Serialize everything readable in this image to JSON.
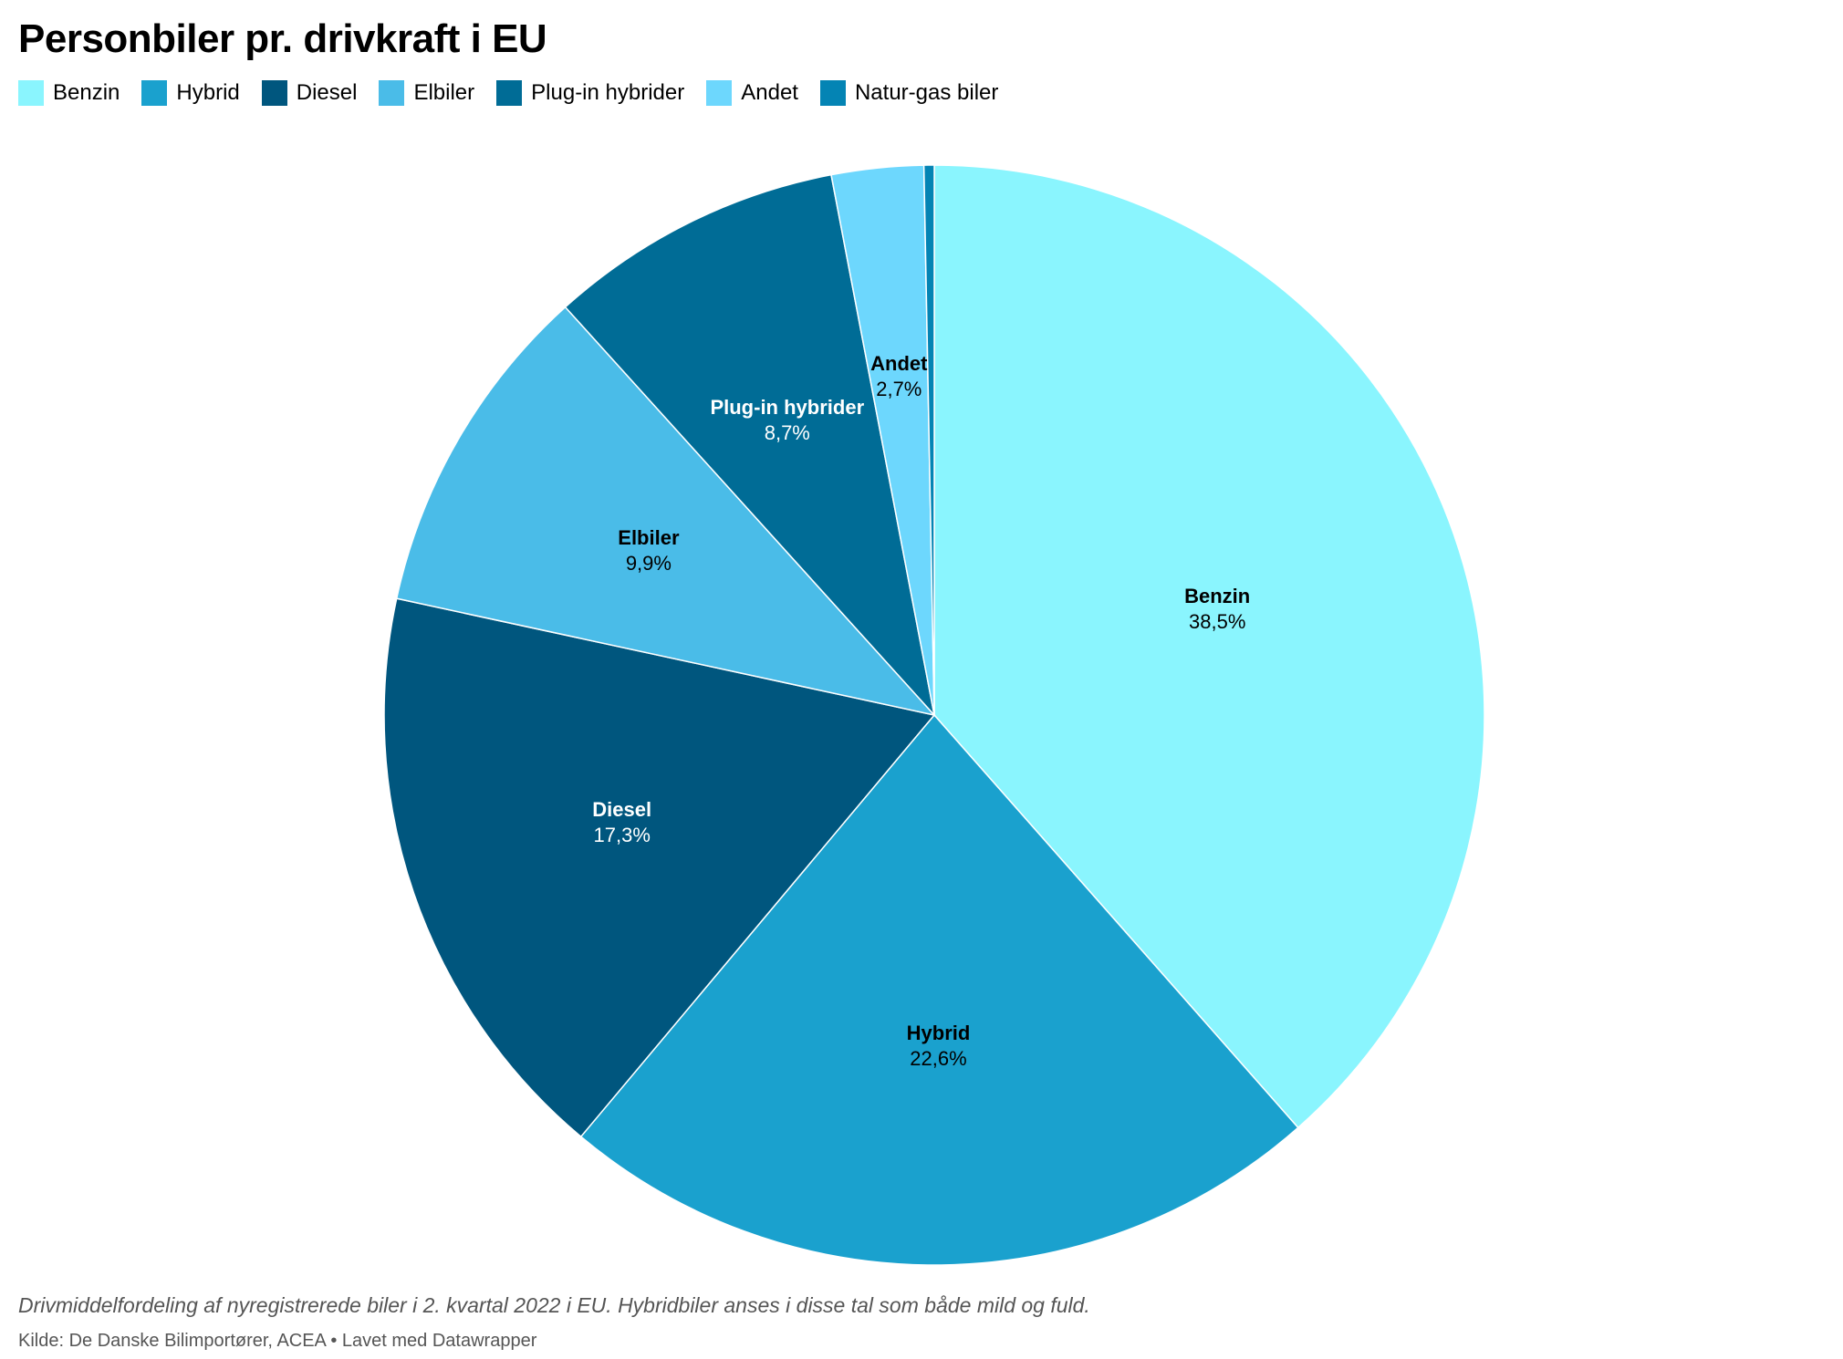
{
  "chart_data": {
    "type": "pie",
    "title": "Personbiler pr. drivkraft i EU",
    "slices": [
      {
        "name": "Benzin",
        "value": 38.5,
        "label": "38,5%",
        "color": "#8af5fe",
        "label_color": "#000000"
      },
      {
        "name": "Hybrid",
        "value": 22.6,
        "label": "22,6%",
        "color": "#1aa1ce",
        "label_color": "#000000"
      },
      {
        "name": "Diesel",
        "value": 17.3,
        "label": "17,3%",
        "color": "#00567e",
        "label_color": "#ffffff"
      },
      {
        "name": "Elbiler",
        "value": 9.9,
        "label": "9,9%",
        "color": "#4abce8",
        "label_color": "#000000"
      },
      {
        "name": "Plug-in hybrider",
        "value": 8.7,
        "label": "8,7%",
        "color": "#006c96",
        "label_color": "#ffffff"
      },
      {
        "name": "Andet",
        "value": 2.7,
        "label": "2,7%",
        "color": "#6dd7fd",
        "label_color": "#000000"
      },
      {
        "name": "Natur-gas biler",
        "value": 0.3,
        "label": "",
        "color": "#0484b4",
        "label_color": "#000000"
      }
    ],
    "legend_position": "top-left",
    "notes": "Drivmiddelfordeling af nyregistrerede biler i 2. kvartal 2022 i EU. Hybridbiler anses i disse tal som både mild og fuld.",
    "source": "Kilde: De Danske Bilimportører, ACEA • Lavet med Datawrapper"
  }
}
